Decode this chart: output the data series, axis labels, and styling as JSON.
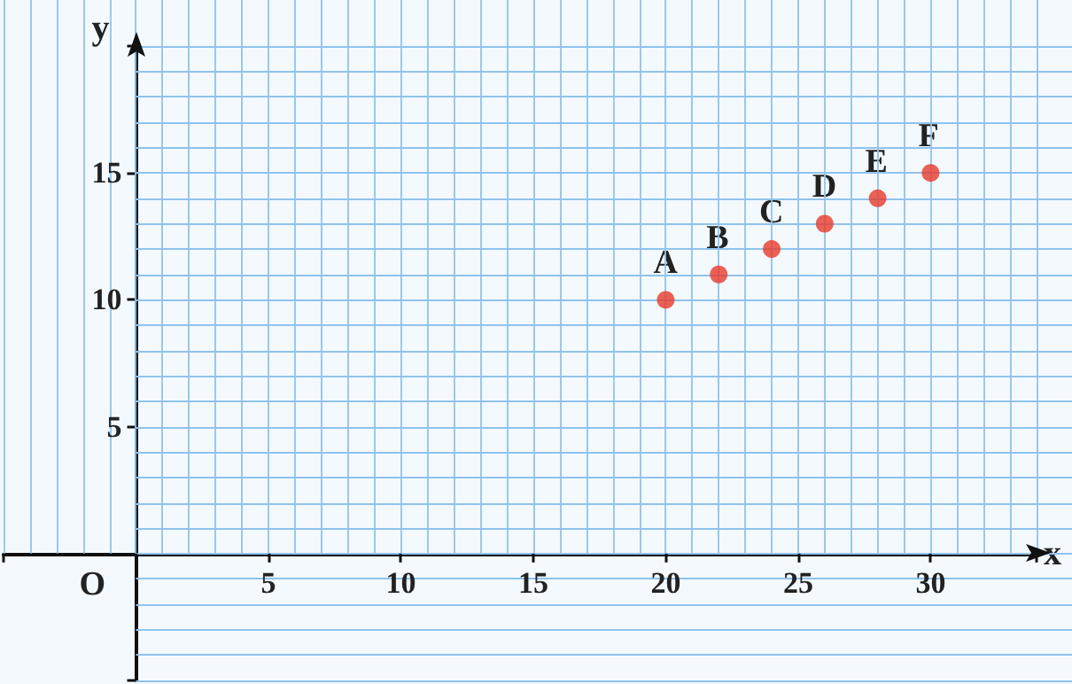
{
  "chart_data": {
    "type": "scatter",
    "xlabel": "x",
    "ylabel": "y",
    "x": [
      20,
      22,
      24,
      26,
      28,
      30
    ],
    "values": [
      10,
      11,
      12,
      13,
      14,
      15
    ],
    "color": "#e8392b",
    "marker": "circle",
    "xlim": [
      -5,
      34
    ],
    "ylim": [
      -5,
      20
    ],
    "xticks": [
      {
        "value": -5,
        "label": null
      },
      {
        "value": -4,
        "label": null
      },
      {
        "value": -3,
        "label": null
      },
      {
        "value": -2,
        "label": null
      },
      {
        "value": -1,
        "label": null
      },
      {
        "value": 0,
        "label": null
      },
      {
        "value": 1,
        "label": null
      },
      {
        "value": 2,
        "label": null
      },
      {
        "value": 3,
        "label": null
      },
      {
        "value": 4,
        "label": null
      },
      5,
      {
        "value": 6,
        "label": null
      },
      {
        "value": 7,
        "label": null
      },
      {
        "value": 8,
        "label": null
      },
      {
        "value": 9,
        "label": null
      },
      10,
      {
        "value": 11,
        "label": null
      },
      {
        "value": 12,
        "label": null
      },
      {
        "value": 13,
        "label": null
      },
      {
        "value": 14,
        "label": null
      },
      15,
      {
        "value": 16,
        "label": null
      },
      {
        "value": 17,
        "label": null
      },
      {
        "value": 18,
        "label": null
      },
      {
        "value": 19,
        "label": null
      },
      20,
      {
        "value": 21,
        "label": null
      },
      {
        "value": 22,
        "label": null
      },
      {
        "value": 23,
        "label": null
      },
      {
        "value": 24,
        "label": null
      },
      25,
      {
        "value": 26,
        "label": null
      },
      {
        "value": 27,
        "label": null
      },
      {
        "value": 28,
        "label": null
      },
      {
        "value": 29,
        "label": null
      },
      30,
      {
        "value": 31,
        "label": null
      },
      {
        "value": 32,
        "label": null
      },
      {
        "value": 33,
        "label": null
      },
      {
        "value": 34,
        "label": null
      }
    ],
    "yticks": [
      {
        "value": -5,
        "label": null
      },
      {
        "value": -4,
        "label": null
      },
      {
        "value": -3,
        "label": null
      },
      {
        "value": -2,
        "label": null
      },
      {
        "value": -1,
        "label": null
      },
      {
        "value": 0,
        "label": null
      },
      {
        "value": 1,
        "label": null
      },
      {
        "value": 2,
        "label": null
      },
      {
        "value": 3,
        "label": null
      },
      {
        "value": 4,
        "label": null
      },
      5,
      {
        "value": 6,
        "label": null
      },
      {
        "value": 7,
        "label": null
      },
      {
        "value": 8,
        "label": null
      },
      {
        "value": 9,
        "label": null
      },
      10,
      {
        "value": 11,
        "label": null
      },
      {
        "value": 12,
        "label": null
      },
      {
        "value": 13,
        "label": null
      },
      {
        "value": 14,
        "label": null
      },
      15,
      {
        "value": 16,
        "label": null
      },
      {
        "value": 17,
        "label": null
      },
      {
        "value": 18,
        "label": null
      },
      {
        "value": 19,
        "label": null
      },
      {
        "value": 20,
        "label": null
      }
    ],
    "grid": true,
    "annotations": [
      "O",
      {
        "text": "A",
        "x": 20,
        "y": 10
      },
      {
        "text": "B",
        "x": 22,
        "y": 11
      },
      {
        "text": "C",
        "x": 24,
        "y": 12
      },
      {
        "text": "D",
        "x": 26,
        "y": 13
      },
      {
        "text": "E",
        "x": 28,
        "y": 14
      },
      {
        "text": "F",
        "x": 30,
        "y": 15
      }
    ]
  }
}
